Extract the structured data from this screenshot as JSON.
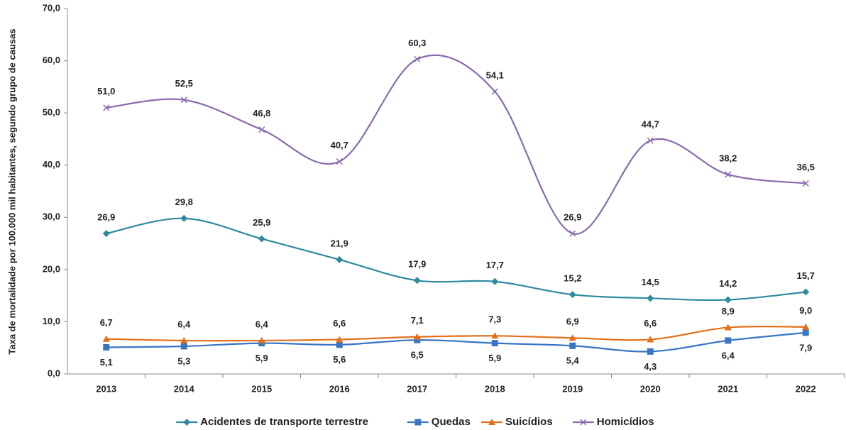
{
  "chart_data": {
    "type": "line",
    "y_label": "Taxa de mortalidade por 100.000 mil habitantes, segundo grupo de causas",
    "categories": [
      "2013",
      "2014",
      "2015",
      "2016",
      "2017",
      "2018",
      "2019",
      "2020",
      "2021",
      "2022"
    ],
    "series": [
      {
        "name": "Acidentes de transporte terrestre",
        "color": "#2e8a9e",
        "marker": "diamond",
        "values": [
          26.9,
          29.8,
          25.9,
          21.9,
          17.9,
          17.7,
          15.2,
          14.5,
          14.2,
          15.7
        ],
        "value_labels": [
          "26,9",
          "29,8",
          "25,9",
          "21,9",
          "17,9",
          "17,7",
          "15,2",
          "14,5",
          "14,2",
          "15,7"
        ]
      },
      {
        "name": "Quedas",
        "color": "#3a75c4",
        "marker": "square",
        "values": [
          5.1,
          5.3,
          5.9,
          5.6,
          6.5,
          5.9,
          5.4,
          4.3,
          6.4,
          7.9
        ],
        "value_labels": [
          "5,1",
          "5,3",
          "5,9",
          "5,6",
          "6,5",
          "5,9",
          "5,4",
          "4,3",
          "6,4",
          "7,9"
        ]
      },
      {
        "name": "Suicídios",
        "color": "#e3701a",
        "marker": "triangle",
        "values": [
          6.7,
          6.4,
          6.4,
          6.6,
          7.1,
          7.3,
          6.9,
          6.6,
          8.9,
          9.0
        ],
        "value_labels": [
          "6,7",
          "6,4",
          "6,4",
          "6,6",
          "7,1",
          "7,3",
          "6,9",
          "6,6",
          "8,9",
          "9,0"
        ]
      },
      {
        "name": "Homicídios",
        "color": "#8a6aaf",
        "marker": "x",
        "values": [
          51.0,
          52.5,
          46.8,
          40.7,
          60.3,
          54.1,
          26.9,
          44.7,
          38.2,
          36.5
        ],
        "value_labels": [
          "51,0",
          "52,5",
          "46,8",
          "40,7",
          "60,3",
          "54,1",
          "26,9",
          "44,7",
          "38,2",
          "36,5"
        ]
      }
    ],
    "ylim": [
      0,
      70
    ],
    "yticks": [
      {
        "value": 0,
        "label": "0,0"
      },
      {
        "value": 10,
        "label": "10,0"
      },
      {
        "value": 20,
        "label": "20,0"
      },
      {
        "value": 30,
        "label": "30,0"
      },
      {
        "value": 40,
        "label": "40,0"
      },
      {
        "value": 50,
        "label": "50,0"
      },
      {
        "value": 60,
        "label": "60,0"
      },
      {
        "value": 70,
        "label": "70,0"
      }
    ],
    "grid": false,
    "smooth": true,
    "legend": "bottom"
  }
}
